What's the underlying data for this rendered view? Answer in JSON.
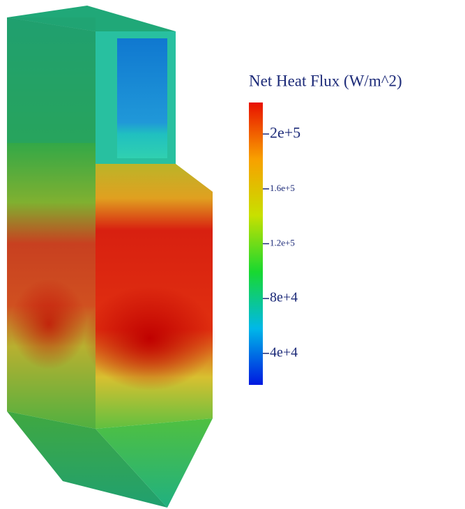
{
  "chart_data": {
    "type": "colorbar",
    "title": "Net Heat Flux (W/m^2)",
    "ylim": [
      17000,
      223000
    ],
    "yticks": [
      {
        "value": 40000,
        "label": "4e+4"
      },
      {
        "value": 80000,
        "label": "8e+4"
      },
      {
        "value": 120000,
        "label": "1.2e+5"
      },
      {
        "value": 160000,
        "label": "1.6e+5"
      },
      {
        "value": 200000,
        "label": "2e+5"
      }
    ],
    "colors": [
      "#0018e0",
      "#00b8e8",
      "#18d830",
      "#c8e000",
      "#f8a000",
      "#e81000"
    ]
  }
}
